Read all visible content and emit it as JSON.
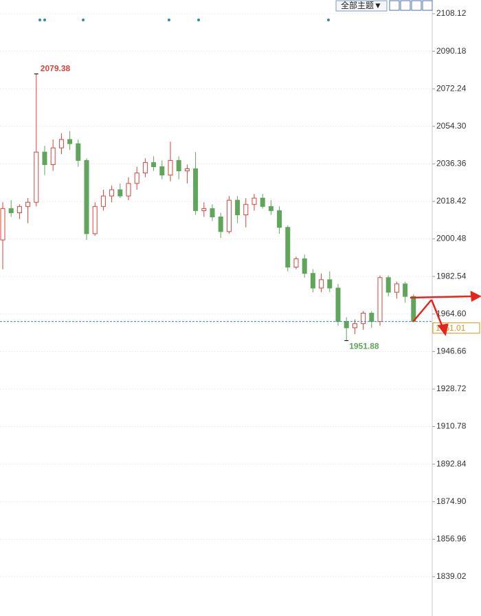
{
  "toolbar": {
    "theme": "全部主题▼"
  },
  "chart_data": {
    "type": "candlestick",
    "up_color": "#d9413a",
    "down_color": "#5fa65a",
    "last_line_color": "#2a8bb8",
    "last_label_color": "#e8901a",
    "open": [
      2000,
      2015,
      2013,
      2016,
      2018,
      2042,
      2036,
      2044,
      2048,
      2046,
      2038,
      2003,
      2016,
      2021,
      2024,
      2021,
      2027,
      2032,
      2037,
      2035,
      2031,
      2038,
      2033,
      2034,
      2014,
      2015,
      2011,
      2004,
      2019,
      2012,
      2017,
      2020,
      2016,
      2014,
      2006,
      1987,
      1991,
      1984,
      1977,
      1981,
      1977,
      1961,
      1958,
      1960,
      1965,
      1961,
      1982,
      1975,
      1979,
      1973
    ],
    "high": [
      2018,
      2019,
      2017,
      2020,
      2079.38,
      2045,
      2048,
      2051,
      2052,
      2048,
      2039,
      2018,
      2024,
      2026,
      2027,
      2030,
      2035,
      2039,
      2040,
      2038,
      2047,
      2040,
      2036,
      2042,
      2018,
      2017,
      2013,
      2021,
      2021,
      2020,
      2022,
      2022,
      2019,
      2016,
      2007,
      1992,
      1993,
      1986,
      1984,
      1985,
      1979,
      1963,
      1962,
      1966,
      1966,
      1983,
      1983,
      1980,
      1980,
      1974
    ],
    "low": [
      1986,
      2011,
      2010,
      2008,
      2016,
      2031,
      2033,
      2041,
      2043,
      2035,
      2000,
      2002,
      2014,
      2018,
      2020,
      2019,
      2024,
      2030,
      2033,
      2029,
      2028,
      2029,
      2027,
      2012,
      2011,
      2009,
      2001,
      2003,
      2008,
      2006,
      2014,
      2015,
      2012,
      2003,
      1985,
      1986,
      1982,
      1975,
      1975,
      1975,
      1959,
      1951.88,
      1955,
      1957,
      1958,
      1959,
      1973,
      1972,
      1970,
      1961.01
    ],
    "close": [
      2015,
      2013,
      2016,
      2018,
      2042,
      2036,
      2044,
      2048,
      2046,
      2038,
      2003,
      2016,
      2021,
      2024,
      2021,
      2027,
      2032,
      2037,
      2035,
      2031,
      2038,
      2033,
      2034,
      2014,
      2015,
      2011,
      2004,
      2019,
      2012,
      2017,
      2020,
      2016,
      2014,
      2006,
      1987,
      1991,
      1984,
      1977,
      1981,
      1977,
      1961,
      1958,
      1960,
      1965,
      1961,
      1982,
      1975,
      1979,
      1973,
      1961.01
    ],
    "ylim": [
      1820.25,
      2114.69
    ],
    "yticks": [
      2108.12,
      2090.18,
      2072.24,
      {
        "value": 2054.3,
        "label": "2054.30"
      },
      2036.36,
      2018.42,
      2000.48,
      1982.54,
      {
        "value": 1964.6,
        "label": "1964.60"
      },
      1946.66,
      1928.72,
      1910.78,
      1892.84,
      {
        "value": 1874.9,
        "label": "1874.90"
      },
      1856.96,
      1839.02
    ],
    "grid": true
  }
}
